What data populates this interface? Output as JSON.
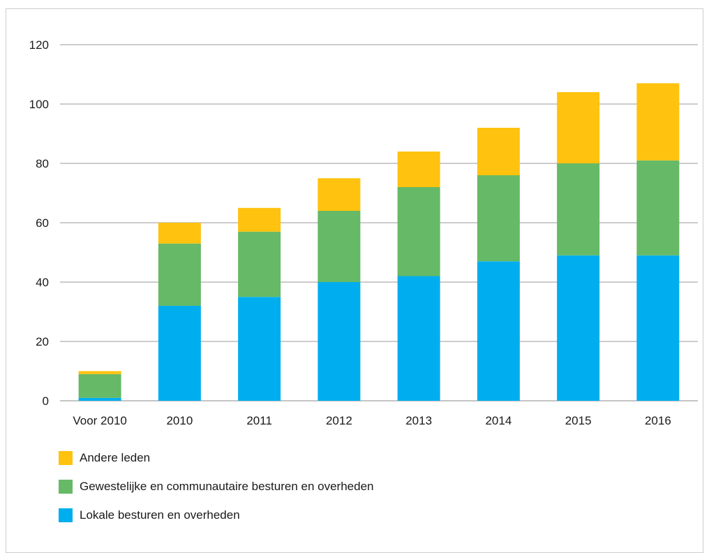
{
  "chart_data": {
    "type": "bar",
    "stacked": true,
    "categories": [
      "Voor 2010",
      "2010",
      "2011",
      "2012",
      "2013",
      "2014",
      "2015",
      "2016"
    ],
    "series": [
      {
        "name": "Lokale besturen en overheden",
        "color": "#00aeef",
        "values": [
          1,
          32,
          35,
          40,
          42,
          47,
          49,
          49
        ]
      },
      {
        "name": "Gewestelijke en communautaire besturen en overheden",
        "color": "#66b966",
        "values": [
          8,
          21,
          22,
          24,
          30,
          29,
          31,
          32
        ]
      },
      {
        "name": "Andere leden",
        "color": "#ffc20e",
        "values": [
          1,
          7,
          8,
          11,
          12,
          16,
          24,
          26
        ]
      }
    ],
    "y_ticks": [
      "0",
      "20",
      "40",
      "60",
      "80",
      "100",
      "120"
    ],
    "ylim": [
      0,
      120
    ],
    "grid": true,
    "legend_position": "bottom-left",
    "title": "",
    "xlabel": "",
    "ylabel": ""
  }
}
